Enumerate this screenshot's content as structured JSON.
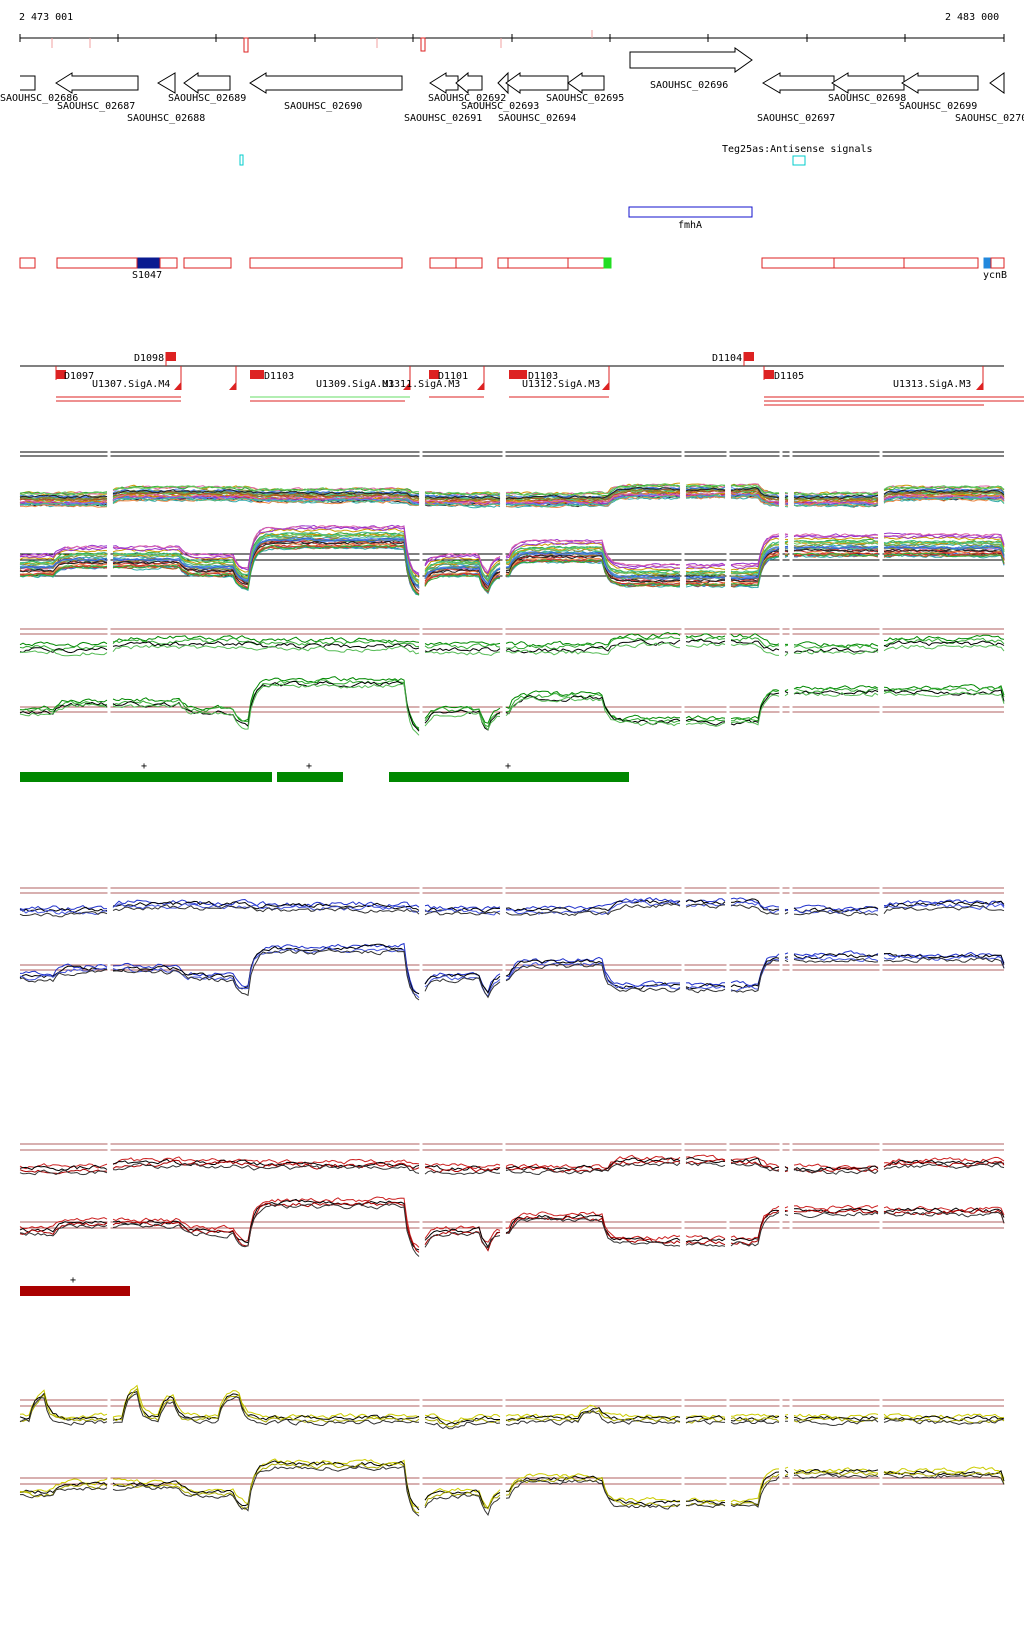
{
  "coordinates": {
    "start": "2 473 001",
    "end": "2 483 000"
  },
  "genes": [
    {
      "label": "SAOUHSC_02686"
    },
    {
      "label": "SAOUHSC_02687"
    },
    {
      "label": "SAOUHSC_02688"
    },
    {
      "label": "SAOUHSC_02689"
    },
    {
      "label": "SAOUHSC_02690"
    },
    {
      "label": "SAOUHSC_02691"
    },
    {
      "label": "SAOUHSC_02692"
    },
    {
      "label": "SAOUHSC_02693"
    },
    {
      "label": "SAOUHSC_02694"
    },
    {
      "label": "SAOUHSC_02695"
    },
    {
      "label": "SAOUHSC_02696"
    },
    {
      "label": "SAOUHSC_02697"
    },
    {
      "label": "SAOUHSC_02698"
    },
    {
      "label": "SAOUHSC_02699"
    },
    {
      "label": "SAOUHSC_0270"
    }
  ],
  "antisense_label": "Teg25as:Antisense signals",
  "feature_labels": {
    "fmha": "fmhA",
    "s1047": "S1047",
    "ycnb": "ycnB"
  },
  "promoter_labels": {
    "d1097": "D1097",
    "d1098": "D1098",
    "d1101": "D1101",
    "d1103": "D1103",
    "d1104": "D1104",
    "d1105": "D1105",
    "u1307": "U1307.SigA.M4",
    "u1309": "U1309.SigA.M3",
    "u1311": "U1311.SigA.M3",
    "u1312": "U1312.SigA.M3",
    "u1313": "U1313.SigA.M3"
  },
  "segment_marks": {
    "green": "+",
    "red": "+"
  },
  "colors": {
    "gene_outline": "#000000",
    "feature_red": "#dd2222",
    "feature_blue": "#1010cc",
    "dark_blue": "#0a1a90",
    "bright_green": "#22dd22",
    "cyan": "#00cccc",
    "light_blue": "#2288dd",
    "green": "#008800",
    "blue": "#2233cc",
    "dark_red": "#aa0000",
    "red": "#cc2222",
    "yellow": "#cccc00",
    "gridline": "#b06060"
  }
}
